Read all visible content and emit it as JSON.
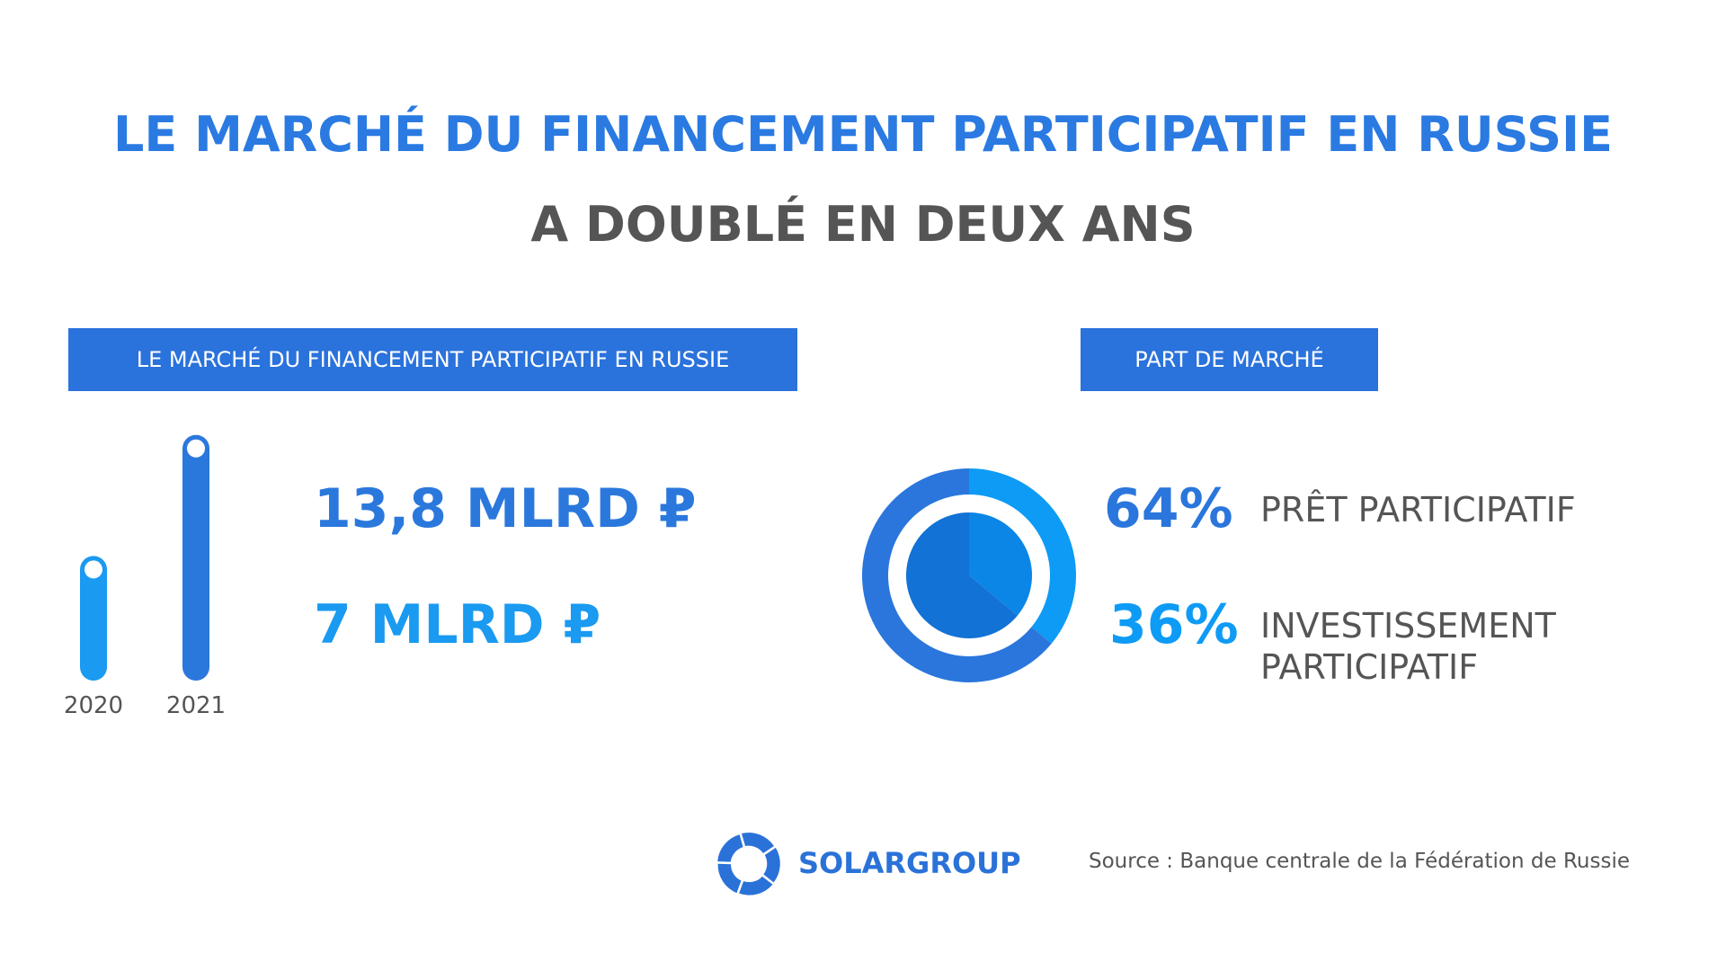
{
  "title": "LE MARCHÉ DU FINANCEMENT PARTICIPATIF EN RUSSIE",
  "subtitle": "A DOUBLÉ EN DEUX ANS",
  "chart_data": [
    {
      "type": "bar",
      "title": "LE MARCHÉ DU FINANCEMENT PARTICIPATIF EN RUSSIE",
      "categories": [
        "2020",
        "2021"
      ],
      "values": [
        7,
        13.8
      ],
      "value_labels": [
        "7 MLRD ₽",
        "13,8 MLRD ₽"
      ],
      "colors": [
        "#1a9af0",
        "#2b78dd"
      ]
    },
    {
      "type": "pie",
      "title": "PART DE MARCHÉ",
      "categories": [
        "PRÊT PARTICIPATIF",
        "INVESTISSEMENT PARTICIPATIF"
      ],
      "values": [
        64,
        36
      ],
      "value_labels": [
        "64%",
        "36%"
      ],
      "colors": [
        "#2a76dc",
        "#0e9bf5"
      ]
    }
  ],
  "logo": "SOLARGROUP",
  "source": "Source : Banque centrale de la Fédération de Russie"
}
